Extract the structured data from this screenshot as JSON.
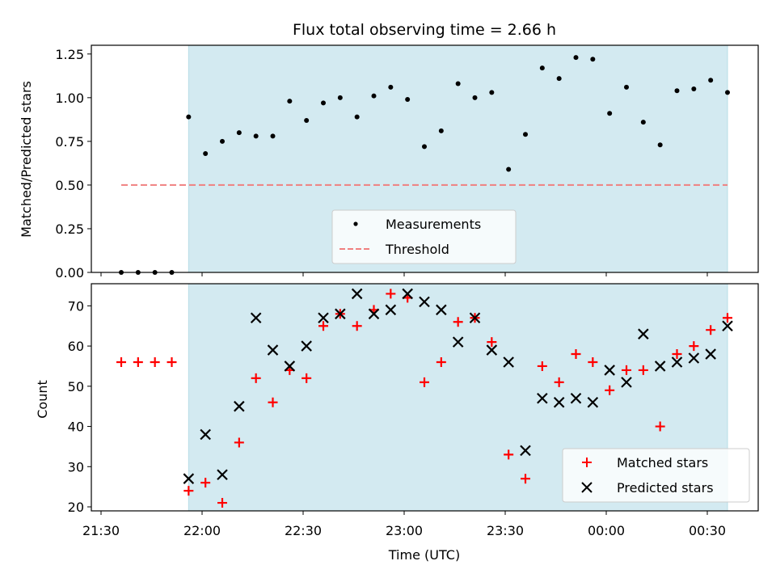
{
  "chart_data": [
    {
      "type": "scatter",
      "title": "Flux total observing time = 2.66 h",
      "xlabel": "",
      "ylabel": "Matched/Predicted stars",
      "ylim": [
        0,
        1.3
      ],
      "yticks": [
        "0.00",
        "0.25",
        "0.50",
        "0.75",
        "1.00",
        "1.25"
      ],
      "ytick_values": [
        0,
        0.25,
        0.5,
        0.75,
        1.0,
        1.25
      ],
      "shaded_x_range": [
        "21:56",
        "00:36"
      ],
      "legend_position": "lower-center",
      "series": [
        {
          "name": "Measurements",
          "marker": "dot",
          "color": "#000000",
          "points": [
            [
              "21:36",
              0.0
            ],
            [
              "21:41",
              0.0
            ],
            [
              "21:46",
              0.0
            ],
            [
              "21:51",
              0.0
            ],
            [
              "21:56",
              0.89
            ],
            [
              "22:01",
              0.68
            ],
            [
              "22:06",
              0.75
            ],
            [
              "22:11",
              0.8
            ],
            [
              "22:16",
              0.78
            ],
            [
              "22:21",
              0.78
            ],
            [
              "22:26",
              0.98
            ],
            [
              "22:31",
              0.87
            ],
            [
              "22:36",
              0.97
            ],
            [
              "22:41",
              1.0
            ],
            [
              "22:46",
              0.89
            ],
            [
              "22:51",
              1.01
            ],
            [
              "22:56",
              1.06
            ],
            [
              "23:01",
              0.99
            ],
            [
              "23:06",
              0.72
            ],
            [
              "23:11",
              0.81
            ],
            [
              "23:16",
              1.08
            ],
            [
              "23:21",
              1.0
            ],
            [
              "23:26",
              1.03
            ],
            [
              "23:31",
              0.59
            ],
            [
              "23:36",
              0.79
            ],
            [
              "23:41",
              1.17
            ],
            [
              "23:46",
              1.11
            ],
            [
              "23:51",
              1.23
            ],
            [
              "23:56",
              1.22
            ],
            [
              "00:01",
              0.91
            ],
            [
              "00:06",
              1.06
            ],
            [
              "00:11",
              0.86
            ],
            [
              "00:16",
              0.73
            ],
            [
              "00:21",
              1.04
            ],
            [
              "00:26",
              1.05
            ],
            [
              "00:31",
              1.1
            ],
            [
              "00:36",
              1.03
            ]
          ]
        },
        {
          "name": "Threshold",
          "marker": "dashed-line",
          "color": "#f08080",
          "points": [
            [
              "21:36",
              0.5
            ],
            [
              "00:36",
              0.5
            ]
          ]
        }
      ]
    },
    {
      "type": "scatter",
      "title": "",
      "xlabel": "Time (UTC)",
      "ylabel": "Count",
      "ylim": [
        19,
        75.5
      ],
      "yticks": [
        "20",
        "30",
        "40",
        "50",
        "60",
        "70"
      ],
      "ytick_values": [
        20,
        30,
        40,
        50,
        60,
        70
      ],
      "xticks": [
        "21:30",
        "22:00",
        "22:30",
        "23:00",
        "23:30",
        "00:00",
        "00:30"
      ],
      "shaded_x_range": [
        "21:56",
        "00:36"
      ],
      "legend_position": "lower-right",
      "series": [
        {
          "name": "Matched stars",
          "marker": "plus",
          "color": "#ff0000",
          "points": [
            [
              "21:36",
              56
            ],
            [
              "21:41",
              56
            ],
            [
              "21:46",
              56
            ],
            [
              "21:51",
              56
            ],
            [
              "21:56",
              24
            ],
            [
              "22:01",
              26
            ],
            [
              "22:06",
              21
            ],
            [
              "22:11",
              36
            ],
            [
              "22:16",
              52
            ],
            [
              "22:21",
              46
            ],
            [
              "22:26",
              54
            ],
            [
              "22:31",
              52
            ],
            [
              "22:36",
              65
            ],
            [
              "22:41",
              68
            ],
            [
              "22:46",
              65
            ],
            [
              "22:51",
              69
            ],
            [
              "22:56",
              73
            ],
            [
              "23:01",
              72
            ],
            [
              "23:06",
              51
            ],
            [
              "23:11",
              56
            ],
            [
              "23:16",
              66
            ],
            [
              "23:21",
              67
            ],
            [
              "23:26",
              61
            ],
            [
              "23:31",
              33
            ],
            [
              "23:36",
              27
            ],
            [
              "23:41",
              55
            ],
            [
              "23:46",
              51
            ],
            [
              "23:51",
              58
            ],
            [
              "23:56",
              56
            ],
            [
              "00:01",
              49
            ],
            [
              "00:06",
              54
            ],
            [
              "00:11",
              54
            ],
            [
              "00:16",
              40
            ],
            [
              "00:21",
              58
            ],
            [
              "00:26",
              60
            ],
            [
              "00:31",
              64
            ],
            [
              "00:36",
              67
            ]
          ]
        },
        {
          "name": "Predicted stars",
          "marker": "x",
          "color": "#000000",
          "points": [
            [
              "21:56",
              27
            ],
            [
              "22:01",
              38
            ],
            [
              "22:06",
              28
            ],
            [
              "22:11",
              45
            ],
            [
              "22:16",
              67
            ],
            [
              "22:21",
              59
            ],
            [
              "22:26",
              55
            ],
            [
              "22:31",
              60
            ],
            [
              "22:36",
              67
            ],
            [
              "22:41",
              68
            ],
            [
              "22:46",
              73
            ],
            [
              "22:51",
              68
            ],
            [
              "22:56",
              69
            ],
            [
              "23:01",
              73
            ],
            [
              "23:06",
              71
            ],
            [
              "23:11",
              69
            ],
            [
              "23:16",
              61
            ],
            [
              "23:21",
              67
            ],
            [
              "23:26",
              59
            ],
            [
              "23:31",
              56
            ],
            [
              "23:36",
              34
            ],
            [
              "23:41",
              47
            ],
            [
              "23:46",
              46
            ],
            [
              "23:51",
              47
            ],
            [
              "23:56",
              46
            ],
            [
              "00:01",
              54
            ],
            [
              "00:06",
              51
            ],
            [
              "00:11",
              63
            ],
            [
              "00:16",
              55
            ],
            [
              "00:21",
              56
            ],
            [
              "00:26",
              57
            ],
            [
              "00:31",
              58
            ],
            [
              "00:36",
              65
            ]
          ]
        }
      ]
    }
  ],
  "colors": {
    "shade": "#d3eaf1",
    "shade_edge": "#b7dde6",
    "measurement": "#000000",
    "threshold": "#f08080",
    "matched": "#ff0000",
    "predicted": "#000000"
  }
}
